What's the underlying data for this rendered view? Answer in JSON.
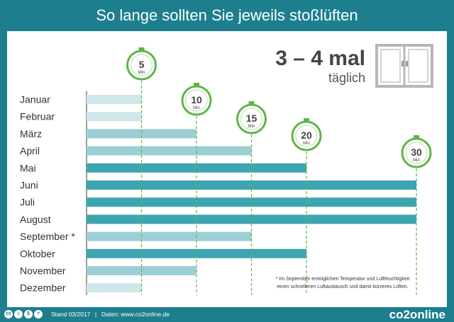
{
  "title": "So lange sollten Sie jeweils stoßlüften",
  "frequency": {
    "big": "3 – 4 mal",
    "small": "täglich"
  },
  "timer_unit": "Min",
  "footnote": [
    "* Im September ermöglichen Temperatur und Luftfeuchtigkeit",
    "einen schnelleren Luftaustausch und damit kürzeres Lüften."
  ],
  "footer": {
    "stand": "Stand 03/2017",
    "separator": "|",
    "daten": "Daten: www.co2online.de",
    "brand": "co2online"
  },
  "colors": {
    "teal_dark": "#3ea5b0",
    "teal_mid": "#9ccfd5",
    "teal_light": "#cfe7ea",
    "timer_green": "#5fb548",
    "header_bg": "#1d7f8e"
  },
  "chart_data": {
    "type": "bar",
    "orientation": "horizontal",
    "categories": [
      "Januar",
      "Februar",
      "März",
      "April",
      "Mai",
      "Juni",
      "Juli",
      "August",
      "September *",
      "Oktober",
      "November",
      "Dezember"
    ],
    "values": [
      5,
      5,
      10,
      15,
      20,
      30,
      30,
      30,
      15,
      20,
      10,
      5
    ],
    "unit": "Min",
    "reference_values": [
      5,
      10,
      15,
      20,
      30
    ],
    "xlim": [
      0,
      30
    ]
  }
}
